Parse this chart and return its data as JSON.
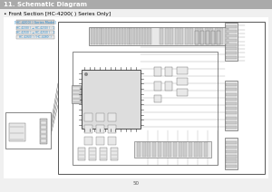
{
  "page_number": "50",
  "header_text": "11. Schematic Diagram",
  "header_bg": "#aaaaaa",
  "header_text_color": "#ffffff",
  "header_font_size": 5.0,
  "subtitle": "• Front Section [HC-4200( ) Series Only]",
  "subtitle_color": "#000000",
  "subtitle_font_size": 4.2,
  "bg_color": "#f0f0f0",
  "model_label": "[HC-4200( ) Series Model]",
  "model_lines": [
    "HC-4230( ) → HC-4230( ) : 1",
    "HC-4250( ) → HC-4250( ) : 2",
    "HC-4260( ) / HC-4280( )"
  ],
  "model_text_color": "#2288cc",
  "model_bg": "#dddddd",
  "model_font_size": 2.5,
  "diagram_border_color": "#555555",
  "inner_border_color": "#555555",
  "connector_color": "#666666",
  "chip_color": "#dddddd",
  "line_color": "#666666",
  "page_num_color": "#555555",
  "page_num_font_size": 4.0,
  "white": "#ffffff",
  "light_gray": "#e8e8e8",
  "mid_gray": "#cccccc",
  "dark_gray": "#888888"
}
